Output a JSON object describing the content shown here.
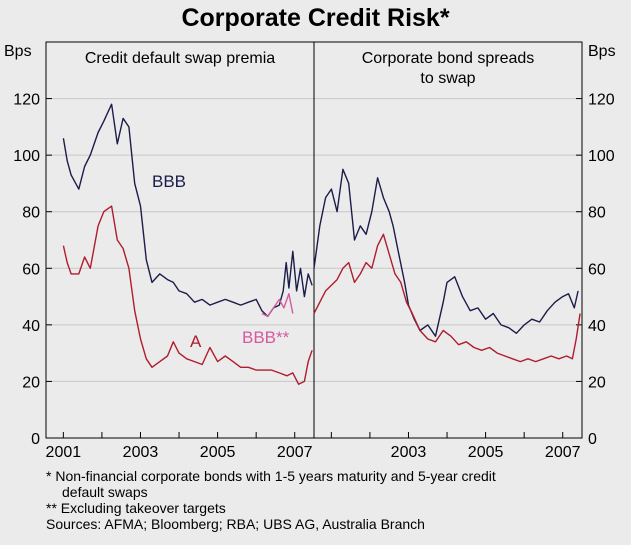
{
  "title": "Corporate Credit Risk*",
  "footnotes": [
    "*   Non-financial corporate bonds with 1-5 years maturity and 5-year credit",
    "default swaps",
    "** Excluding takeover targets",
    "Sources: AFMA; Bloomberg; RBA; UBS AG, Australia Branch"
  ],
  "chart_data": [
    {
      "type": "line",
      "title": "Credit default swap premia",
      "ylabel": "Bps",
      "ylim": [
        0,
        140
      ],
      "yticks": [
        0,
        20,
        40,
        60,
        80,
        100,
        120
      ],
      "xlim": [
        2000.5,
        2007.5
      ],
      "xticks": [
        "2001",
        "2003",
        "2005",
        "2007"
      ],
      "series": [
        {
          "name": "BBB",
          "color": "#1c1c4a",
          "x": [
            2001.0,
            2001.1,
            2001.2,
            2001.4,
            2001.55,
            2001.7,
            2001.9,
            2002.05,
            2002.25,
            2002.4,
            2002.55,
            2002.7,
            2002.85,
            2003.0,
            2003.15,
            2003.3,
            2003.5,
            2003.7,
            2003.85,
            2004.0,
            2004.2,
            2004.4,
            2004.6,
            2004.8,
            2005.0,
            2005.2,
            2005.4,
            2005.6,
            2005.8,
            2006.0,
            2006.15,
            2006.3,
            2006.45,
            2006.6,
            2006.7,
            2006.78,
            2006.85,
            2006.95,
            2007.05,
            2007.15,
            2007.25,
            2007.35,
            2007.45
          ],
          "y": [
            106,
            98,
            93,
            88,
            96,
            100,
            108,
            112,
            118,
            104,
            113,
            110,
            90,
            82,
            63,
            55,
            58,
            56,
            55,
            52,
            51,
            48,
            49,
            47,
            48,
            49,
            48,
            47,
            48,
            49,
            45,
            43,
            46,
            47,
            52,
            62,
            53,
            66,
            52,
            60,
            50,
            58,
            54
          ]
        },
        {
          "name": "BBB**",
          "color": "#d65a9f",
          "x": [
            2006.15,
            2006.3,
            2006.45,
            2006.6,
            2006.72,
            2006.85,
            2006.95
          ],
          "y": [
            44,
            43,
            46,
            49,
            46,
            51,
            44
          ]
        },
        {
          "name": "A",
          "color": "#b01c2e",
          "x": [
            2001.0,
            2001.1,
            2001.2,
            2001.4,
            2001.55,
            2001.7,
            2001.9,
            2002.05,
            2002.25,
            2002.4,
            2002.55,
            2002.7,
            2002.85,
            2003.0,
            2003.15,
            2003.3,
            2003.5,
            2003.7,
            2003.85,
            2004.0,
            2004.2,
            2004.4,
            2004.6,
            2004.8,
            2005.0,
            2005.2,
            2005.4,
            2005.6,
            2005.8,
            2006.0,
            2006.2,
            2006.4,
            2006.6,
            2006.8,
            2006.95,
            2007.1,
            2007.25,
            2007.35,
            2007.45
          ],
          "y": [
            68,
            62,
            58,
            58,
            64,
            60,
            75,
            80,
            82,
            70,
            67,
            60,
            45,
            35,
            28,
            25,
            27,
            29,
            34,
            30,
            28,
            27,
            26,
            32,
            27,
            29,
            27,
            25,
            25,
            24,
            24,
            24,
            23,
            22,
            23,
            19,
            20,
            27,
            31
          ]
        }
      ],
      "annotations": [
        {
          "text": "BBB",
          "color": "#1c1c4a"
        },
        {
          "text": "A",
          "color": "#b01c2e"
        },
        {
          "text": "BBB**",
          "color": "#d65a9f"
        }
      ]
    },
    {
      "type": "line",
      "title": "Corporate bond spreads to swap",
      "title_lines": [
        "Corporate bond spreads",
        "to swap"
      ],
      "ylabel": "Bps",
      "ylim": [
        0,
        140
      ],
      "yticks": [
        0,
        20,
        40,
        60,
        80,
        100,
        120
      ],
      "xlim": [
        2000.5,
        2007.5
      ],
      "xticks": [
        "2003",
        "2005",
        "2007"
      ],
      "series": [
        {
          "name": "BBB",
          "color": "#1c1c4a",
          "x": [
            2000.55,
            2000.7,
            2000.85,
            2001.0,
            2001.15,
            2001.3,
            2001.45,
            2001.6,
            2001.75,
            2001.9,
            2002.05,
            2002.2,
            2002.35,
            2002.5,
            2002.6,
            2002.75,
            2002.9,
            2003.0,
            2003.15,
            2003.3,
            2003.5,
            2003.7,
            2003.9,
            2004.0,
            2004.2,
            2004.4,
            2004.6,
            2004.8,
            2005.0,
            2005.2,
            2005.4,
            2005.6,
            2005.8,
            2006.0,
            2006.2,
            2006.4,
            2006.6,
            2006.8,
            2007.0,
            2007.15,
            2007.3,
            2007.4
          ],
          "y": [
            60,
            75,
            85,
            88,
            80,
            95,
            90,
            70,
            75,
            72,
            80,
            92,
            85,
            80,
            75,
            65,
            55,
            47,
            42,
            38,
            40,
            36,
            48,
            55,
            57,
            50,
            45,
            46,
            42,
            44,
            40,
            39,
            37,
            40,
            42,
            41,
            45,
            48,
            50,
            51,
            46,
            52
          ]
        },
        {
          "name": "A",
          "color": "#b01c2e",
          "x": [
            2000.55,
            2000.7,
            2000.85,
            2001.0,
            2001.15,
            2001.3,
            2001.45,
            2001.6,
            2001.75,
            2001.9,
            2002.05,
            2002.2,
            2002.35,
            2002.5,
            2002.65,
            2002.8,
            2002.95,
            2003.1,
            2003.3,
            2003.5,
            2003.7,
            2003.9,
            2004.1,
            2004.3,
            2004.5,
            2004.7,
            2004.9,
            2005.1,
            2005.3,
            2005.5,
            2005.7,
            2005.9,
            2006.1,
            2006.3,
            2006.5,
            2006.7,
            2006.9,
            2007.1,
            2007.25,
            2007.35,
            2007.45
          ],
          "y": [
            44,
            48,
            52,
            54,
            56,
            60,
            62,
            55,
            58,
            62,
            60,
            68,
            72,
            65,
            58,
            55,
            48,
            44,
            38,
            35,
            34,
            38,
            36,
            33,
            34,
            32,
            31,
            32,
            30,
            29,
            28,
            27,
            28,
            27,
            28,
            29,
            28,
            29,
            28,
            35,
            44
          ]
        }
      ]
    }
  ]
}
